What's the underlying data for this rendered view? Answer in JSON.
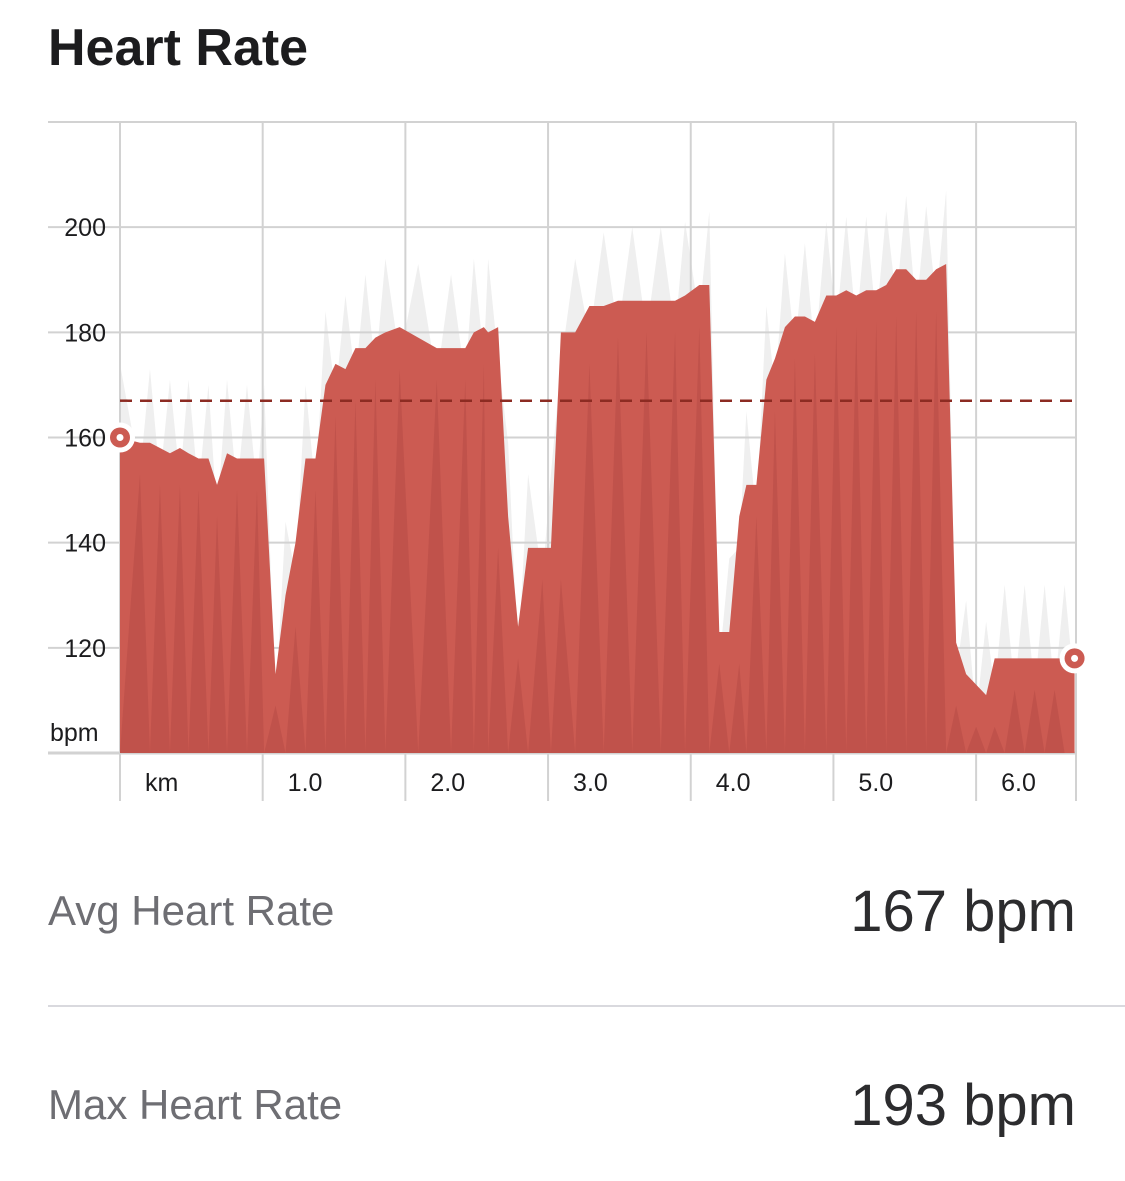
{
  "header": {
    "title": "Heart Rate"
  },
  "chart_data": {
    "type": "area",
    "title": "Heart Rate",
    "xlabel": "km",
    "ylabel": "bpm",
    "xlim": [
      0,
      6.7
    ],
    "ylim": [
      100,
      220
    ],
    "x_ticks": [
      {
        "value": 0,
        "label": "km"
      },
      {
        "value": 1,
        "label": "1.0"
      },
      {
        "value": 2,
        "label": "2.0"
      },
      {
        "value": 3,
        "label": "3.0"
      },
      {
        "value": 4,
        "label": "4.0"
      },
      {
        "value": 5,
        "label": "5.0"
      },
      {
        "value": 6,
        "label": "6.0"
      }
    ],
    "y_ticks": [
      {
        "value": 120,
        "label": "120"
      },
      {
        "value": 140,
        "label": "140"
      },
      {
        "value": 160,
        "label": "160"
      },
      {
        "value": 180,
        "label": "180"
      },
      {
        "value": 200,
        "label": "200"
      }
    ],
    "y_unit_label": "bpm",
    "grid": true,
    "average": 167,
    "colors": {
      "fill": "#cc5b52",
      "fill_dark": "#b64a45",
      "avg_line": "#8c2b22",
      "background_series": "#efefef",
      "grid": "#d2d2d2"
    },
    "series": [
      {
        "x": [
          0,
          0.14,
          0.21,
          0.28,
          0.35,
          0.42,
          0.48,
          0.55,
          0.62,
          0.68,
          0.75,
          0.82,
          0.89,
          0.96,
          1.01,
          1.09,
          1.16,
          1.23,
          1.3,
          1.37,
          1.44,
          1.51,
          1.58,
          1.65,
          1.72,
          1.79,
          1.86,
          1.96,
          2.09,
          2.22,
          2.32,
          2.42,
          2.48,
          2.55,
          2.58,
          2.65,
          2.72,
          2.79,
          2.86,
          2.96,
          3.02,
          3.09,
          3.19,
          3.29,
          3.39,
          3.49,
          3.59,
          3.69,
          3.79,
          3.89,
          3.96,
          4.06,
          4.13,
          4.2,
          4.27,
          4.34,
          4.39,
          4.46,
          4.53,
          4.59,
          4.66,
          4.73,
          4.8,
          4.87,
          4.95,
          5.02,
          5.09,
          5.16,
          5.23,
          5.3,
          5.37,
          5.44,
          5.51,
          5.58,
          5.65,
          5.72,
          5.79,
          5.86,
          5.93,
          6.0,
          6.07,
          6.13,
          6.2,
          6.27,
          6.34,
          6.41,
          6.48,
          6.55,
          6.62,
          6.69
        ],
        "y": [
          160,
          159,
          159,
          158,
          157,
          158,
          157,
          156,
          156,
          151,
          157,
          156,
          156,
          156,
          156,
          115,
          130,
          140,
          156,
          156,
          170,
          174,
          173,
          177,
          177,
          179,
          180,
          181,
          179,
          177,
          177,
          177,
          180,
          181,
          180,
          181,
          145,
          124,
          139,
          139,
          139,
          180,
          180,
          185,
          185,
          186,
          186,
          186,
          186,
          186,
          187,
          189,
          189,
          123,
          123,
          145,
          151,
          151,
          171,
          175,
          181,
          183,
          183,
          182,
          187,
          187,
          188,
          187,
          188,
          188,
          189,
          192,
          192,
          190,
          190,
          192,
          193,
          121,
          115,
          113,
          111,
          118,
          118,
          118,
          118,
          118,
          118,
          118,
          118,
          118
        ]
      }
    ]
  },
  "stats": [
    {
      "label": "Avg Heart Rate",
      "value": "167 bpm"
    },
    {
      "label": "Max Heart Rate",
      "value": "193 bpm"
    }
  ]
}
